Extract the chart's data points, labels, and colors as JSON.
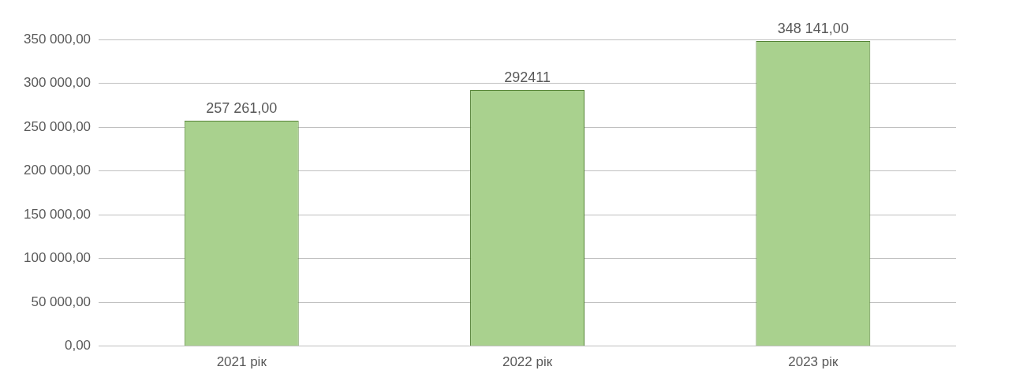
{
  "chart_data": {
    "type": "bar",
    "categories": [
      "2021 рік",
      "2022 рік",
      "2023 рік"
    ],
    "values": [
      257261,
      292411,
      348141
    ],
    "color": "#a9d18e",
    "value_labels": [
      "257 261,00",
      "292411",
      "348 141,00"
    ],
    "ylim": [
      0,
      350000
    ],
    "yticks": [
      {
        "value": 0,
        "label": "0,00"
      },
      {
        "value": 50000,
        "label": "50 000,00"
      },
      {
        "value": 100000,
        "label": "100 000,00"
      },
      {
        "value": 150000,
        "label": "150 000,00"
      },
      {
        "value": 200000,
        "label": "200 000,00"
      },
      {
        "value": 250000,
        "label": "250 000,00"
      },
      {
        "value": 300000,
        "label": "300 000,00"
      },
      {
        "value": 350000,
        "label": "350 000,00"
      }
    ],
    "grid": "y"
  }
}
